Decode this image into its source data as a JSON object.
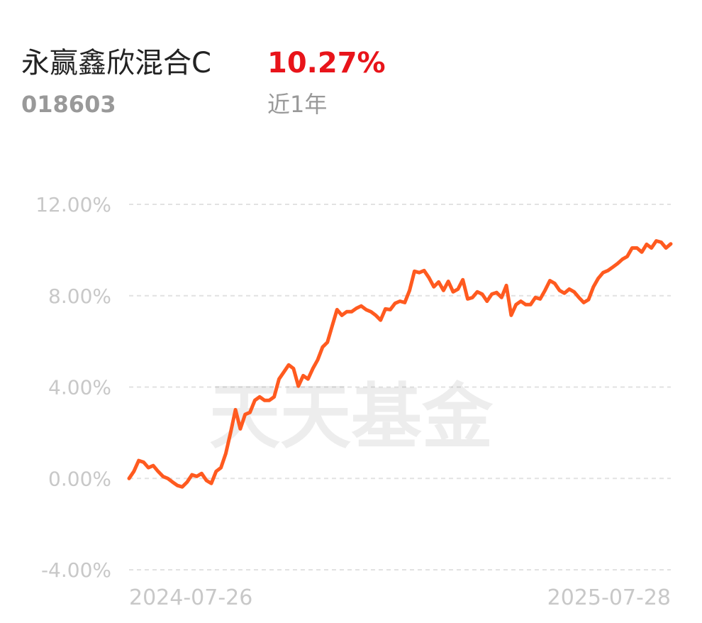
{
  "header": {
    "fund_name": "永赢鑫欣混合C",
    "return": "10.27%",
    "code": "018603",
    "period": "近1年"
  },
  "chart_data": {
    "type": "line",
    "watermark": "天天基金",
    "color": "#ff5a1f",
    "grid": true,
    "ylim": [
      -4,
      12
    ],
    "yticks": [
      {
        "value": -4,
        "label": "-4.00%"
      },
      {
        "value": 0,
        "label": "0.00%"
      },
      {
        "value": 4,
        "label": "4.00%"
      },
      {
        "value": 8,
        "label": "8.00%"
      },
      {
        "value": 12,
        "label": "12.00%"
      }
    ],
    "categories": [
      "2024-07-26",
      null,
      null,
      null,
      null,
      null,
      null,
      null,
      null,
      null,
      null,
      null,
      null,
      null,
      null,
      null,
      null,
      null,
      null,
      null,
      null,
      null,
      null,
      null,
      null,
      null,
      null,
      null,
      null,
      null,
      null,
      null,
      null,
      null,
      null,
      null,
      null,
      null,
      null,
      null,
      null,
      null,
      null,
      null,
      null,
      null,
      null,
      null,
      null,
      null,
      null,
      null,
      null,
      null,
      null,
      null,
      null,
      null,
      null,
      null,
      null,
      null,
      null,
      null,
      null,
      null,
      null,
      null,
      null,
      null,
      null,
      null,
      null,
      null,
      null,
      null,
      null,
      null,
      null,
      null,
      null,
      null,
      null,
      null,
      null,
      null,
      null,
      null,
      null,
      null,
      null,
      null,
      null,
      null,
      null,
      null,
      null,
      null,
      null,
      null,
      null,
      null,
      null,
      null,
      null,
      null,
      null,
      null,
      null,
      null,
      null,
      null,
      "2025-07-28"
    ],
    "values": [
      0,
      0.31,
      0.78,
      0.71,
      0.47,
      0.56,
      0.31,
      0.09,
      0,
      -0.16,
      -0.31,
      -0.37,
      -0.16,
      0.16,
      0.09,
      0.22,
      -0.09,
      -0.22,
      0.31,
      0.47,
      1.09,
      2.02,
      3.01,
      2.17,
      2.8,
      2.89,
      3.42,
      3.57,
      3.42,
      3.42,
      3.57,
      4.35,
      4.66,
      4.97,
      4.81,
      4.04,
      4.5,
      4.35,
      4.81,
      5.19,
      5.75,
      5.96,
      6.68,
      7.39,
      7.14,
      7.3,
      7.3,
      7.45,
      7.55,
      7.39,
      7.3,
      7.14,
      6.93,
      7.42,
      7.39,
      7.67,
      7.76,
      7.7,
      8.23,
      9.07,
      9.01,
      9.1,
      8.79,
      8.39,
      8.6,
      8.23,
      8.63,
      8.17,
      8.29,
      8.7,
      7.86,
      7.92,
      8.17,
      8.07,
      7.76,
      8.07,
      8.14,
      7.92,
      8.45,
      7.14,
      7.61,
      7.76,
      7.61,
      7.61,
      7.92,
      7.86,
      8.23,
      8.66,
      8.54,
      8.23,
      8.11,
      8.29,
      8.17,
      7.92,
      7.7,
      7.83,
      8.39,
      8.76,
      9.01,
      9.1,
      9.25,
      9.41,
      9.6,
      9.72,
      10.09,
      10.09,
      9.91,
      10.25,
      10.09,
      10.4,
      10.34,
      10.09,
      10.27
    ]
  }
}
